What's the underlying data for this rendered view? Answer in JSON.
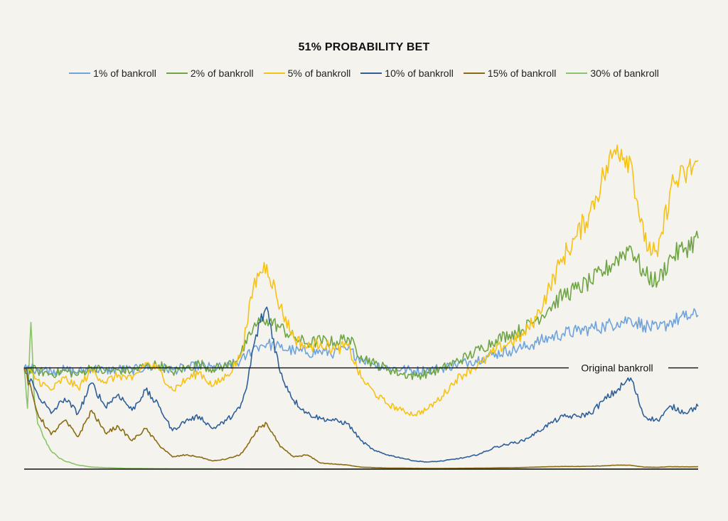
{
  "chart_data": {
    "type": "line",
    "title": "51% PROBABILITY BET",
    "xlabel": "",
    "ylabel": "",
    "legend_position": "top",
    "grid": false,
    "reference_line": {
      "label": "Original bankroll",
      "value": 1.0
    },
    "x_range": [
      0,
      1000
    ],
    "y_range": [
      0,
      3.3
    ],
    "series": [
      {
        "name": "1% of bankroll",
        "color": "#6fa3dc",
        "x": [
          0,
          20,
          40,
          60,
          80,
          100,
          120,
          140,
          160,
          180,
          200,
          220,
          240,
          260,
          280,
          300,
          320,
          330,
          340,
          350,
          360,
          380,
          400,
          420,
          440,
          460,
          480,
          500,
          520,
          540,
          560,
          580,
          600,
          620,
          640,
          660,
          680,
          700,
          720,
          740,
          760,
          780,
          800,
          820,
          840,
          860,
          880,
          900,
          920,
          940,
          960,
          980,
          1000
        ],
        "y": [
          1.0,
          0.99,
          0.97,
          0.98,
          0.96,
          1.0,
          0.97,
          0.99,
          0.98,
          1.0,
          1.01,
          0.98,
          1.0,
          1.02,
          1.0,
          1.01,
          1.06,
          1.12,
          1.2,
          1.22,
          1.24,
          1.2,
          1.17,
          1.15,
          1.16,
          1.15,
          1.18,
          1.09,
          1.04,
          1.0,
          0.99,
          0.97,
          0.98,
          1.0,
          1.03,
          1.06,
          1.1,
          1.14,
          1.17,
          1.2,
          1.25,
          1.3,
          1.34,
          1.36,
          1.39,
          1.41,
          1.45,
          1.48,
          1.42,
          1.38,
          1.46,
          1.5,
          1.52
        ]
      },
      {
        "name": "2% of bankroll",
        "color": "#6ea544",
        "x": [
          0,
          20,
          40,
          60,
          80,
          100,
          120,
          140,
          160,
          180,
          200,
          220,
          240,
          260,
          280,
          300,
          320,
          330,
          340,
          350,
          360,
          380,
          400,
          420,
          440,
          460,
          480,
          500,
          520,
          540,
          560,
          580,
          600,
          620,
          640,
          660,
          680,
          700,
          720,
          740,
          760,
          780,
          800,
          820,
          840,
          860,
          880,
          900,
          920,
          940,
          960,
          980,
          1000
        ],
        "y": [
          1.0,
          0.97,
          0.94,
          0.97,
          0.93,
          1.01,
          0.96,
          0.98,
          0.97,
          1.02,
          1.03,
          0.96,
          1.0,
          1.04,
          0.99,
          1.02,
          1.12,
          1.24,
          1.4,
          1.45,
          1.48,
          1.4,
          1.3,
          1.24,
          1.27,
          1.25,
          1.3,
          1.12,
          1.04,
          0.99,
          0.94,
          0.92,
          0.95,
          0.99,
          1.06,
          1.12,
          1.2,
          1.28,
          1.33,
          1.38,
          1.48,
          1.6,
          1.72,
          1.78,
          1.85,
          1.95,
          2.08,
          2.2,
          1.92,
          1.85,
          2.1,
          2.18,
          2.28
        ]
      },
      {
        "name": "5% of bankroll",
        "color": "#f5c215",
        "x": [
          0,
          20,
          40,
          60,
          80,
          100,
          120,
          140,
          160,
          180,
          200,
          220,
          240,
          260,
          280,
          300,
          320,
          330,
          340,
          350,
          360,
          380,
          400,
          420,
          440,
          460,
          480,
          500,
          520,
          540,
          560,
          580,
          600,
          620,
          640,
          660,
          680,
          700,
          720,
          740,
          760,
          780,
          800,
          820,
          840,
          860,
          880,
          900,
          920,
          940,
          960,
          980,
          1000
        ],
        "y": [
          1.0,
          0.88,
          0.78,
          0.9,
          0.8,
          0.98,
          0.86,
          0.93,
          0.88,
          1.05,
          0.98,
          0.78,
          0.88,
          0.96,
          0.82,
          0.92,
          1.1,
          1.4,
          1.8,
          1.95,
          2.02,
          1.6,
          1.3,
          1.2,
          1.25,
          1.18,
          1.22,
          0.9,
          0.75,
          0.64,
          0.58,
          0.54,
          0.6,
          0.72,
          0.88,
          0.98,
          1.05,
          1.18,
          1.25,
          1.32,
          1.5,
          1.8,
          2.1,
          2.3,
          2.55,
          2.9,
          3.2,
          3.05,
          2.25,
          2.1,
          2.8,
          2.9,
          3.05
        ]
      },
      {
        "name": "10% of bankroll",
        "color": "#2e5f99",
        "x": [
          0,
          20,
          40,
          60,
          80,
          100,
          120,
          140,
          160,
          180,
          200,
          220,
          240,
          260,
          280,
          300,
          320,
          330,
          340,
          350,
          360,
          380,
          400,
          420,
          440,
          460,
          480,
          500,
          520,
          540,
          560,
          580,
          600,
          620,
          640,
          660,
          680,
          700,
          720,
          740,
          760,
          780,
          800,
          820,
          840,
          860,
          880,
          900,
          920,
          940,
          960,
          980,
          1000
        ],
        "y": [
          1.0,
          0.74,
          0.55,
          0.7,
          0.55,
          0.85,
          0.62,
          0.74,
          0.58,
          0.78,
          0.62,
          0.38,
          0.48,
          0.52,
          0.4,
          0.48,
          0.6,
          0.8,
          1.2,
          1.45,
          1.6,
          0.95,
          0.68,
          0.55,
          0.5,
          0.48,
          0.45,
          0.28,
          0.18,
          0.14,
          0.11,
          0.08,
          0.07,
          0.08,
          0.1,
          0.12,
          0.16,
          0.22,
          0.25,
          0.28,
          0.36,
          0.45,
          0.52,
          0.52,
          0.55,
          0.68,
          0.78,
          0.9,
          0.52,
          0.48,
          0.62,
          0.56,
          0.62
        ]
      },
      {
        "name": "15% of bankroll",
        "color": "#8a6a12",
        "x": [
          0,
          20,
          40,
          60,
          80,
          100,
          120,
          140,
          160,
          180,
          200,
          220,
          240,
          260,
          280,
          300,
          320,
          330,
          340,
          350,
          360,
          380,
          400,
          420,
          440,
          460,
          480,
          500,
          520,
          540,
          560,
          580,
          600,
          620,
          640,
          660,
          680,
          700,
          720,
          740,
          760,
          780,
          800,
          820,
          840,
          860,
          880,
          900,
          920,
          940,
          960,
          980,
          1000
        ],
        "y": [
          1.0,
          0.55,
          0.34,
          0.48,
          0.32,
          0.58,
          0.36,
          0.42,
          0.28,
          0.4,
          0.24,
          0.12,
          0.14,
          0.12,
          0.08,
          0.1,
          0.14,
          0.22,
          0.32,
          0.42,
          0.45,
          0.22,
          0.12,
          0.14,
          0.06,
          0.05,
          0.04,
          0.02,
          0.015,
          0.01,
          0.01,
          0.008,
          0.007,
          0.007,
          0.008,
          0.009,
          0.01,
          0.012,
          0.014,
          0.016,
          0.02,
          0.024,
          0.026,
          0.026,
          0.028,
          0.032,
          0.04,
          0.038,
          0.02,
          0.018,
          0.024,
          0.022,
          0.024
        ]
      },
      {
        "name": "30% of bankroll",
        "color": "#8cc46b",
        "x": [
          0,
          5,
          10,
          15,
          20,
          30,
          40,
          50,
          60,
          80,
          100,
          120,
          150,
          200,
          300,
          400,
          500,
          600,
          700,
          800,
          900,
          1000
        ],
        "y": [
          1.0,
          0.6,
          1.45,
          0.7,
          0.45,
          0.3,
          0.18,
          0.12,
          0.08,
          0.04,
          0.02,
          0.015,
          0.008,
          0.004,
          0.002,
          0.001,
          0.001,
          0.001,
          0.001,
          0.001,
          0.001,
          0.001
        ]
      }
    ]
  }
}
